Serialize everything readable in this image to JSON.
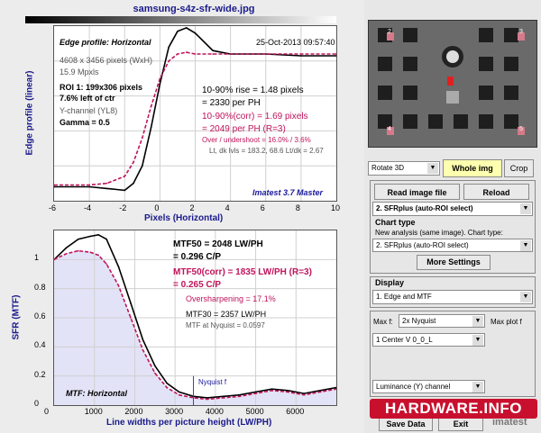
{
  "window": {
    "title": "samsung-s4z-sfr-wide.jpg"
  },
  "edge_plot": {
    "heading": "Edge profile: Horizontal",
    "timestamp": "25-Oct-2013 09:57:40",
    "info1": "4608 x 3456 pixels (WxH)",
    "info2": "15.9 Mpxls",
    "roi": "ROI 1:  199x306 pixels",
    "roi_pos": "7.6% left of ctr",
    "channel": "Y-channel  (YL8)",
    "gamma": "Gamma = 0.5",
    "rise": "10-90% rise = 1.48 pixels",
    "rise_ph": "= 2330 per PH",
    "rise_corr": "10-90%(corr) = 1.69 pixels",
    "rise_corr_ph": "= 2049 per PH  (R=3)",
    "overshoot": "Over / undershoot = 16.0% / 3.6%",
    "levels": "Lt, dk lvls = 183.2, 68.6   Lt/dk = 2.67",
    "watermark": "Imatest 3.7 Master",
    "ylabel": "Edge profile (linear)",
    "xlabel": "Pixels (Horizontal)",
    "xticks": [
      "-6",
      "-4",
      "-2",
      "0",
      "2",
      "4",
      "6",
      "8",
      "10"
    ]
  },
  "mtf_plot": {
    "mtf50": "MTF50 = 2048 LW/PH",
    "mtf50_cp": "= 0.296 C/P",
    "mtf50_corr": "MTF50(corr) = 1835 LW/PH  (R=3)",
    "mtf50_corr_cp": "= 0.265 C/P",
    "oversharp": "Oversharpening = 17.1%",
    "mtf30": "MTF30 = 2357 LW/PH",
    "nyq": "MTF at Nyquist = 0.0597",
    "nyq_label": "Nyquist f",
    "heading": "MTF: Horizontal",
    "ylabel": "SFR (MTF)",
    "xlabel": "Line widths per picture height (LW/PH)",
    "xticks": [
      "0",
      "1000",
      "2000",
      "3000",
      "4000",
      "5000",
      "6000"
    ],
    "yticks": [
      "1",
      "0.8",
      "0.6",
      "0.4",
      "0.2",
      "0"
    ]
  },
  "chart_data": [
    {
      "type": "line",
      "title": "Edge profile: Horizontal",
      "xlabel": "Pixels (Horizontal)",
      "ylabel": "Edge profile (linear)",
      "xlim": [
        -6,
        10
      ],
      "ylim": [
        0,
        1
      ],
      "series": [
        {
          "color": "#000000",
          "x": [
            -6,
            -4,
            -3,
            -2,
            -1.5,
            -1,
            -0.5,
            0,
            0.5,
            1,
            1.5,
            2,
            3,
            4,
            6,
            8,
            10
          ],
          "y": [
            0.08,
            0.08,
            0.07,
            0.06,
            0.1,
            0.2,
            0.42,
            0.67,
            0.88,
            0.97,
            0.99,
            0.96,
            0.86,
            0.84,
            0.84,
            0.83,
            0.83
          ]
        },
        {
          "color": "#c0135b",
          "x": [
            -6,
            -4,
            -3,
            -2,
            -1.5,
            -1,
            -0.5,
            0,
            0.5,
            1,
            1.5,
            2,
            3,
            4,
            6,
            8,
            10
          ],
          "y": [
            0.09,
            0.09,
            0.1,
            0.14,
            0.22,
            0.36,
            0.54,
            0.7,
            0.8,
            0.84,
            0.85,
            0.84,
            0.84,
            0.84,
            0.84,
            0.84,
            0.84
          ]
        }
      ]
    },
    {
      "type": "line",
      "title": "MTF: Horizontal",
      "xlabel": "Line widths per picture height (LW/PH)",
      "ylabel": "SFR (MTF)",
      "xlim": [
        0,
        7000
      ],
      "ylim": [
        0,
        1.2
      ],
      "series": [
        {
          "color": "#000000",
          "x": [
            0,
            300,
            600,
            900,
            1100,
            1300,
            1600,
            1900,
            2200,
            2500,
            2800,
            3100,
            3456,
            3800,
            4200,
            4600,
            5000,
            5400,
            5800,
            6200,
            6600,
            7000
          ],
          "y": [
            1.0,
            1.08,
            1.14,
            1.16,
            1.17,
            1.14,
            0.95,
            0.7,
            0.45,
            0.27,
            0.15,
            0.09,
            0.06,
            0.05,
            0.06,
            0.07,
            0.09,
            0.11,
            0.1,
            0.08,
            0.1,
            0.12
          ]
        },
        {
          "color": "#c0135b",
          "x": [
            0,
            300,
            600,
            900,
            1100,
            1300,
            1600,
            1900,
            2200,
            2500,
            2800,
            3100,
            3456,
            3800,
            4200,
            4600,
            5000,
            5400,
            5800,
            6200,
            6600,
            7000
          ],
          "y": [
            1.0,
            1.04,
            1.06,
            1.05,
            1.03,
            0.97,
            0.82,
            0.6,
            0.38,
            0.22,
            0.12,
            0.07,
            0.05,
            0.04,
            0.05,
            0.06,
            0.08,
            0.1,
            0.09,
            0.07,
            0.09,
            0.11
          ]
        }
      ],
      "nyquist_x": 3456
    }
  ],
  "right_panel": {
    "rotate": "Rotate 3D",
    "whole_img": "Whole img",
    "crop": "Crop",
    "read_file": "Read image file",
    "reload": "Reload",
    "sfr_select": "2. SFRplus (auto-ROI select)",
    "chart_type_title": "Chart type",
    "chart_type_desc": "New analysis (same image). Chart type:",
    "chart_type_select": "2. SFRplus (auto-ROI select)",
    "more_settings": "More Settings",
    "display_title": "Display",
    "display_select": "1.  Edge and MTF",
    "maxf_label": "Max f:",
    "maxf_select": "2x Nyquist",
    "maxplot_label": "Max plot f",
    "roi_select": "1  Center  V    0_0_L",
    "channel_select": "Luminance (Y) channel",
    "save_btn": "Save Data",
    "exit_btn": "Exit",
    "brand": "imatest",
    "hw_logo": "HARDWARE.INFO",
    "roi_labels": [
      "2",
      "3",
      "4",
      "5"
    ]
  }
}
